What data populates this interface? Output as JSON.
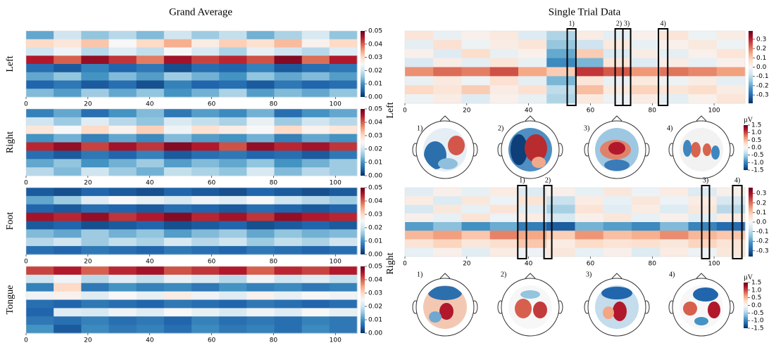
{
  "titles": {
    "left": "Grand Average",
    "right": "Single Trial Data"
  },
  "chart_data": [
    {
      "type": "heatmap",
      "row_label": "Left",
      "xlim": [
        0,
        107
      ],
      "xticks": [
        0,
        20,
        40,
        60,
        80,
        100
      ],
      "clim": [
        0,
        0.05
      ],
      "cticks": [
        {
          "value": 0,
          "label": "0.00"
        },
        {
          "value": 0.01,
          "label": "0.01"
        },
        {
          "value": 0.02,
          "label": "0.02"
        },
        {
          "value": 0.03,
          "label": "0.03"
        },
        {
          "value": 0.04,
          "label": "0.04"
        },
        {
          "value": 0.05,
          "label": "0.05"
        }
      ],
      "values": [
        [
          0.012,
          0.02,
          0.015,
          0.018,
          0.014,
          0.02,
          0.016,
          0.019,
          0.013,
          0.017,
          0.021,
          0.015
        ],
        [
          0.03,
          0.028,
          0.032,
          0.025,
          0.03,
          0.034,
          0.027,
          0.031,
          0.029,
          0.033,
          0.026,
          0.03
        ],
        [
          0.02,
          0.024,
          0.018,
          0.022,
          0.019,
          0.025,
          0.021,
          0.017,
          0.023,
          0.02,
          0.018,
          0.022
        ],
        [
          0.045,
          0.04,
          0.047,
          0.043,
          0.038,
          0.046,
          0.042,
          0.044,
          0.041,
          0.048,
          0.039,
          0.045
        ],
        [
          0.006,
          0.004,
          0.008,
          0.005,
          0.007,
          0.003,
          0.006,
          0.005,
          0.008,
          0.004,
          0.006,
          0.007
        ],
        [
          0.012,
          0.015,
          0.01,
          0.014,
          0.011,
          0.016,
          0.013,
          0.01,
          0.015,
          0.012,
          0.014,
          0.011
        ],
        [
          0.005,
          0.007,
          0.004,
          0.006,
          0.003,
          0.008,
          0.005,
          0.006,
          0.004,
          0.007,
          0.005,
          0.006
        ],
        [
          0.014,
          0.011,
          0.016,
          0.012,
          0.015,
          0.01,
          0.013,
          0.017,
          0.011,
          0.014,
          0.012,
          0.015
        ]
      ]
    },
    {
      "type": "heatmap",
      "row_label": "Right",
      "xlim": [
        0,
        107
      ],
      "xticks": [
        0,
        20,
        40,
        60,
        80,
        100
      ],
      "clim": [
        0,
        0.05
      ],
      "cticks": [
        {
          "value": 0,
          "label": "0.00"
        },
        {
          "value": 0.01,
          "label": "0.01"
        },
        {
          "value": 0.02,
          "label": "0.02"
        },
        {
          "value": 0.03,
          "label": "0.03"
        },
        {
          "value": 0.04,
          "label": "0.04"
        },
        {
          "value": 0.05,
          "label": "0.05"
        }
      ],
      "values": [
        [
          0.008,
          0.012,
          0.006,
          0.01,
          0.014,
          0.007,
          0.011,
          0.009,
          0.013,
          0.006,
          0.01,
          0.012
        ],
        [
          0.02,
          0.016,
          0.022,
          0.018,
          0.015,
          0.021,
          0.019,
          0.017,
          0.023,
          0.016,
          0.02,
          0.018
        ],
        [
          0.028,
          0.025,
          0.03,
          0.026,
          0.031,
          0.024,
          0.029,
          0.027,
          0.025,
          0.03,
          0.026,
          0.028
        ],
        [
          0.01,
          0.013,
          0.008,
          0.012,
          0.009,
          0.014,
          0.011,
          0.01,
          0.013,
          0.008,
          0.012,
          0.01
        ],
        [
          0.044,
          0.047,
          0.042,
          0.046,
          0.043,
          0.048,
          0.045,
          0.041,
          0.047,
          0.044,
          0.046,
          0.043
        ],
        [
          0.006,
          0.004,
          0.007,
          0.005,
          0.008,
          0.004,
          0.006,
          0.007,
          0.005,
          0.006,
          0.004,
          0.007
        ],
        [
          0.012,
          0.015,
          0.01,
          0.013,
          0.016,
          0.011,
          0.014,
          0.012,
          0.015,
          0.01,
          0.013,
          0.016
        ],
        [
          0.018,
          0.014,
          0.02,
          0.016,
          0.013,
          0.019,
          0.017,
          0.015,
          0.021,
          0.014,
          0.018,
          0.016
        ]
      ]
    },
    {
      "type": "heatmap",
      "row_label": "Foot",
      "xlim": [
        0,
        107
      ],
      "xticks": [
        0,
        20,
        40,
        60,
        80,
        100
      ],
      "clim": [
        0,
        0.05
      ],
      "cticks": [
        {
          "value": 0,
          "label": "0.00"
        },
        {
          "value": 0.01,
          "label": "0.01"
        },
        {
          "value": 0.02,
          "label": "0.02"
        },
        {
          "value": 0.03,
          "label": "0.03"
        },
        {
          "value": 0.04,
          "label": "0.04"
        },
        {
          "value": 0.05,
          "label": "0.05"
        }
      ],
      "values": [
        [
          0.004,
          0.003,
          0.005,
          0.004,
          0.003,
          0.005,
          0.004,
          0.003,
          0.005,
          0.004,
          0.003,
          0.004
        ],
        [
          0.012,
          0.016,
          0.022,
          0.025,
          0.023,
          0.021,
          0.024,
          0.022,
          0.025,
          0.02,
          0.018,
          0.016
        ],
        [
          0.005,
          0.004,
          0.006,
          0.005,
          0.004,
          0.006,
          0.005,
          0.004,
          0.006,
          0.005,
          0.004,
          0.005
        ],
        [
          0.046,
          0.044,
          0.047,
          0.043,
          0.045,
          0.048,
          0.044,
          0.046,
          0.043,
          0.047,
          0.045,
          0.044
        ],
        [
          0.004,
          0.005,
          0.003,
          0.004,
          0.005,
          0.003,
          0.004,
          0.005,
          0.003,
          0.004,
          0.005,
          0.004
        ],
        [
          0.014,
          0.012,
          0.016,
          0.013,
          0.015,
          0.011,
          0.014,
          0.016,
          0.012,
          0.015,
          0.013,
          0.014
        ],
        [
          0.018,
          0.02,
          0.016,
          0.019,
          0.017,
          0.021,
          0.018,
          0.02,
          0.016,
          0.019,
          0.017,
          0.02
        ],
        [
          0.006,
          0.005,
          0.007,
          0.006,
          0.005,
          0.007,
          0.006,
          0.005,
          0.007,
          0.006,
          0.005,
          0.006
        ]
      ]
    },
    {
      "type": "heatmap",
      "row_label": "Tongue",
      "xlim": [
        0,
        107
      ],
      "xticks": [
        0,
        20,
        40,
        60,
        80,
        100
      ],
      "clim": [
        0,
        0.05
      ],
      "cticks": [
        {
          "value": 0,
          "label": "0.00"
        },
        {
          "value": 0.01,
          "label": "0.01"
        },
        {
          "value": 0.02,
          "label": "0.02"
        },
        {
          "value": 0.03,
          "label": "0.03"
        },
        {
          "value": 0.04,
          "label": "0.04"
        },
        {
          "value": 0.05,
          "label": "0.05"
        }
      ],
      "values": [
        [
          0.042,
          0.045,
          0.04,
          0.044,
          0.046,
          0.041,
          0.043,
          0.045,
          0.04,
          0.044,
          0.042,
          0.045
        ],
        [
          0.02,
          0.024,
          0.018,
          0.022,
          0.019,
          0.023,
          0.021,
          0.018,
          0.024,
          0.02,
          0.022,
          0.019
        ],
        [
          0.008,
          0.03,
          0.007,
          0.01,
          0.008,
          0.009,
          0.007,
          0.01,
          0.008,
          0.009,
          0.007,
          0.008
        ],
        [
          0.024,
          0.026,
          0.022,
          0.025,
          0.023,
          0.027,
          0.024,
          0.022,
          0.026,
          0.023,
          0.025,
          0.024
        ],
        [
          0.006,
          0.005,
          0.007,
          0.006,
          0.005,
          0.007,
          0.006,
          0.005,
          0.007,
          0.006,
          0.005,
          0.006
        ],
        [
          0.005,
          0.022,
          0.021,
          0.024,
          0.022,
          0.025,
          0.023,
          0.021,
          0.024,
          0.022,
          0.025,
          0.023
        ],
        [
          0.007,
          0.006,
          0.008,
          0.006,
          0.007,
          0.005,
          0.008,
          0.006,
          0.007,
          0.006,
          0.008,
          0.007
        ],
        [
          0.01,
          0.004,
          0.009,
          0.007,
          0.008,
          0.006,
          0.009,
          0.007,
          0.008,
          0.006,
          0.009,
          0.007
        ]
      ]
    },
    {
      "type": "heatmap",
      "row_label": "Left",
      "xlim": [
        0,
        110
      ],
      "xticks": [
        0,
        20,
        40,
        60,
        80,
        100
      ],
      "clim": [
        -0.39,
        0.39
      ],
      "cticks": [
        0.3,
        0.2,
        0.1,
        {
          "value": 0,
          "label": "0.0"
        },
        -0.1,
        -0.2,
        -0.3
      ],
      "boxes": [
        {
          "label": "1)",
          "x": [
            52.5,
            55.3
          ]
        },
        {
          "label": "2)",
          "x": [
            68,
            70.5
          ]
        },
        {
          "label": "3)",
          "x": [
            70.5,
            73
          ]
        },
        {
          "label": "4)",
          "x": [
            82,
            85
          ]
        }
      ],
      "values": [
        [
          0.05,
          -0.03,
          0.02,
          0.04,
          -0.05,
          -0.12,
          0.03,
          -0.04,
          0.02,
          0.05,
          -0.02,
          0.03
        ],
        [
          -0.04,
          0.06,
          -0.02,
          0.03,
          0.05,
          -0.15,
          -0.08,
          0.04,
          -0.03,
          0.02,
          0.04,
          -0.02
        ],
        [
          0.02,
          -0.05,
          0.07,
          -0.03,
          0.02,
          -0.2,
          0.1,
          -0.06,
          0.03,
          -0.04,
          0.02,
          0.05
        ],
        [
          -0.06,
          0.03,
          -0.04,
          0.05,
          -0.03,
          -0.25,
          -0.18,
          0.05,
          -0.05,
          0.03,
          -0.03,
          0.02
        ],
        [
          0.18,
          0.22,
          0.2,
          0.25,
          0.15,
          0.1,
          0.28,
          0.24,
          0.17,
          0.21,
          0.19,
          0.16
        ],
        [
          -0.03,
          0.04,
          -0.02,
          0.06,
          -0.04,
          -0.18,
          0.05,
          -0.03,
          0.04,
          -0.02,
          0.03,
          -0.04
        ],
        [
          0.08,
          0.05,
          0.1,
          0.03,
          0.06,
          -0.1,
          0.12,
          0.04,
          0.09,
          0.05,
          0.07,
          0.03
        ],
        [
          -0.02,
          0.03,
          -0.05,
          0.02,
          -0.03,
          -0.12,
          0.04,
          -0.02,
          0.03,
          -0.04,
          0.02,
          0.05
        ]
      ]
    },
    {
      "type": "heatmap",
      "row_label": "Right",
      "xlim": [
        0,
        110
      ],
      "xticks": [
        0,
        20,
        40,
        60,
        80,
        100
      ],
      "clim": [
        -0.36,
        0.36
      ],
      "cticks": [
        0.3,
        0.2,
        0.1,
        {
          "value": 0,
          "label": "0.0"
        },
        -0.1,
        -0.2,
        -0.3
      ],
      "boxes": [
        {
          "label": "1)",
          "x": [
            36.5,
            39.3
          ]
        },
        {
          "label": "2)",
          "x": [
            45,
            47.5
          ]
        },
        {
          "label": "3)",
          "x": [
            96,
            98.5
          ]
        },
        {
          "label": "4)",
          "x": [
            106,
            109
          ]
        }
      ],
      "values": [
        [
          -0.04,
          0.02,
          -0.03,
          0.03,
          -0.05,
          0.02,
          -0.03,
          0.04,
          -0.02,
          0.03,
          -0.05,
          0.02
        ],
        [
          0.03,
          -0.05,
          0.04,
          -0.02,
          0.05,
          -0.08,
          0.03,
          -0.03,
          0.04,
          -0.02,
          0.03,
          -0.06
        ],
        [
          -0.06,
          0.04,
          -0.03,
          0.05,
          -0.04,
          -0.12,
          0.05,
          -0.04,
          0.03,
          -0.05,
          0.04,
          -0.1
        ],
        [
          0.02,
          -0.03,
          0.05,
          -0.02,
          0.03,
          -0.06,
          0.02,
          0.04,
          -0.03,
          0.02,
          -0.04,
          0.03
        ],
        [
          -0.2,
          -0.15,
          -0.22,
          -0.18,
          -0.25,
          -0.3,
          -0.17,
          -0.2,
          -0.23,
          -0.16,
          -0.24,
          -0.28
        ],
        [
          0.12,
          0.15,
          0.1,
          0.18,
          0.14,
          0.09,
          0.16,
          0.11,
          0.13,
          0.17,
          0.12,
          0.1
        ],
        [
          0.05,
          0.08,
          0.04,
          0.06,
          0.1,
          0.03,
          0.07,
          0.05,
          0.06,
          0.04,
          0.08,
          0.05
        ],
        [
          -0.03,
          0.02,
          -0.04,
          0.03,
          -0.02,
          0.04,
          -0.03,
          0.02,
          -0.05,
          0.03,
          -0.02,
          0.04
        ]
      ]
    }
  ],
  "topomap_rows": [
    {
      "labels": [
        "1)",
        "2)",
        "3)",
        "4)"
      ],
      "unit": "µV",
      "clim": [
        -1.5,
        1.5
      ],
      "cticks": [
        1.5,
        {
          "value": 1,
          "label": "1.0"
        },
        0.5,
        {
          "value": 0,
          "label": "0.0"
        },
        -0.5,
        {
          "value": -1,
          "label": "-1.0"
        },
        -1.5
      ]
    },
    {
      "labels": [
        "1)",
        "2)",
        "3)",
        "4)"
      ],
      "unit": "µV",
      "clim": [
        -1.5,
        1.5
      ],
      "cticks": [
        1.5,
        {
          "value": 1,
          "label": "1.0"
        },
        0.5,
        {
          "value": 0,
          "label": "0.0"
        },
        -0.5,
        {
          "value": -1,
          "label": "-1.0"
        },
        -1.5
      ]
    }
  ]
}
